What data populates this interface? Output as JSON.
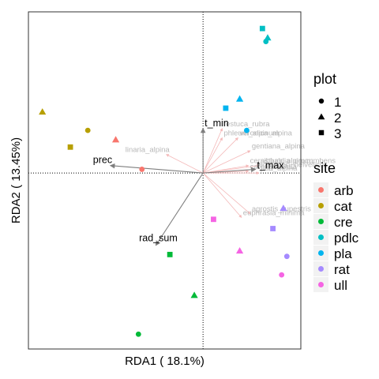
{
  "chart_data": {
    "type": "scatter",
    "title": "",
    "xlabel": "RDA1 ( 18.1%)",
    "ylabel": "RDA2 ( 13.45%)",
    "xlim": [
      -1.0,
      0.56
    ],
    "ylim": [
      -0.95,
      0.87
    ],
    "grid": false,
    "zero_lines": true,
    "site_colors": {
      "arb": "#F8766D",
      "cat": "#B79F00",
      "cre": "#00BA38",
      "pdlc": "#00BFC4",
      "pla": "#00B4EF",
      "rat": "#A58AFF",
      "ull": "#F564E3"
    },
    "env_arrow_color": "#7f7f7f",
    "species_arrow_color": "#f4b9b9",
    "points": [
      {
        "x": -0.92,
        "y": 0.33,
        "site": "cat",
        "plot": "2"
      },
      {
        "x": -0.66,
        "y": 0.23,
        "site": "cat",
        "plot": "1"
      },
      {
        "x": -0.76,
        "y": 0.14,
        "site": "cat",
        "plot": "3"
      },
      {
        "x": -0.5,
        "y": 0.18,
        "site": "arb",
        "plot": "2"
      },
      {
        "x": -0.35,
        "y": 0.02,
        "site": "arb",
        "plot": "1"
      },
      {
        "x": -0.19,
        "y": -0.44,
        "site": "cre",
        "plot": "3"
      },
      {
        "x": -0.05,
        "y": -0.66,
        "site": "cre",
        "plot": "2"
      },
      {
        "x": -0.37,
        "y": -0.87,
        "site": "cre",
        "plot": "1"
      },
      {
        "x": 0.34,
        "y": 0.78,
        "site": "pdlc",
        "plot": "3"
      },
      {
        "x": 0.37,
        "y": 0.73,
        "site": "pdlc",
        "plot": "2"
      },
      {
        "x": 0.36,
        "y": 0.71,
        "site": "pdlc",
        "plot": "1"
      },
      {
        "x": 0.13,
        "y": 0.35,
        "site": "pla",
        "plot": "3"
      },
      {
        "x": 0.21,
        "y": 0.4,
        "site": "pla",
        "plot": "2"
      },
      {
        "x": 0.25,
        "y": 0.23,
        "site": "pla",
        "plot": "1"
      },
      {
        "x": 0.46,
        "y": -0.19,
        "site": "rat",
        "plot": "2"
      },
      {
        "x": 0.4,
        "y": -0.3,
        "site": "rat",
        "plot": "3"
      },
      {
        "x": 0.48,
        "y": -0.45,
        "site": "rat",
        "plot": "1"
      },
      {
        "x": 0.06,
        "y": -0.25,
        "site": "ull",
        "plot": "3"
      },
      {
        "x": 0.21,
        "y": -0.42,
        "site": "ull",
        "plot": "2"
      },
      {
        "x": 0.45,
        "y": -0.55,
        "site": "ull",
        "plot": "1"
      }
    ],
    "env_vectors": [
      {
        "name": "t_min",
        "x": 0.0,
        "y": 0.24
      },
      {
        "name": "t_max",
        "x": 0.3,
        "y": 0.02
      },
      {
        "name": "prec",
        "x": -0.53,
        "y": 0.04
      },
      {
        "name": "rad_sum",
        "x": -0.27,
        "y": -0.39
      }
    ],
    "species_vectors": [
      {
        "name": "linaria_alpina",
        "x": -0.21,
        "y": 0.1
      },
      {
        "name": "festuca_rubra",
        "x": 0.11,
        "y": 0.24
      },
      {
        "name": "phleum_alpinum",
        "x": 0.11,
        "y": 0.19
      },
      {
        "name": "veronica_alpina",
        "x": 0.2,
        "y": 0.19
      },
      {
        "name": "gentiana_alpina",
        "x": 0.27,
        "y": 0.12
      },
      {
        "name": "cerastium_alpinum",
        "x": 0.26,
        "y": 0.04
      },
      {
        "name": "sibbaldia_procumbens",
        "x": 0.32,
        "y": 0.04
      },
      {
        "name": "leontodon_helveticus",
        "x": 0.3,
        "y": 0.02
      },
      {
        "name": "carex_curvula",
        "x": 0.26,
        "y": 0.01
      },
      {
        "name": "poa_alpina",
        "x": 0.32,
        "y": 0.0
      },
      {
        "name": "agrostis_rupestris",
        "x": 0.27,
        "y": -0.22
      },
      {
        "name": "euphrasia_minima",
        "x": 0.22,
        "y": -0.24
      }
    ],
    "legends": [
      {
        "title": "plot",
        "entries": [
          {
            "label": "1",
            "shape": "circle"
          },
          {
            "label": "2",
            "shape": "triangle"
          },
          {
            "label": "3",
            "shape": "square"
          }
        ]
      },
      {
        "title": "site",
        "entries": [
          {
            "label": "arb",
            "color": "#F8766D"
          },
          {
            "label": "cat",
            "color": "#B79F00"
          },
          {
            "label": "cre",
            "color": "#00BA38"
          },
          {
            "label": "pdlc",
            "color": "#00BFC4"
          },
          {
            "label": "pla",
            "color": "#00B4EF"
          },
          {
            "label": "rat",
            "color": "#A58AFF"
          },
          {
            "label": "ull",
            "color": "#F564E3"
          }
        ]
      }
    ],
    "legend_position": "right"
  }
}
